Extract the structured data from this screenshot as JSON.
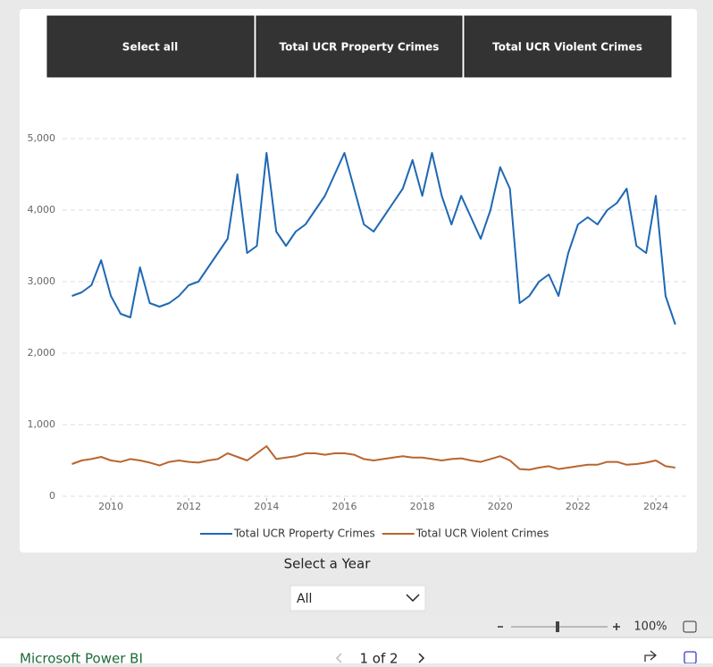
{
  "buttons": [
    "Select all",
    "Total UCR Property Crimes",
    "Total UCR Violent Crimes"
  ],
  "chart_data": {
    "type": "line",
    "x": [
      2009,
      2009.25,
      2009.5,
      2009.75,
      2010,
      2010.25,
      2010.5,
      2010.75,
      2011,
      2011.25,
      2011.5,
      2011.75,
      2012,
      2012.25,
      2012.5,
      2012.75,
      2013,
      2013.25,
      2013.5,
      2013.75,
      2014,
      2014.25,
      2014.5,
      2014.75,
      2015,
      2015.25,
      2015.5,
      2015.75,
      2016,
      2016.25,
      2016.5,
      2016.75,
      2017,
      2017.25,
      2017.5,
      2017.75,
      2018,
      2018.25,
      2018.5,
      2018.75,
      2019,
      2019.25,
      2019.5,
      2019.75,
      2020,
      2020.25,
      2020.5,
      2020.75,
      2021,
      2021.25,
      2021.5,
      2021.75,
      2022,
      2022.25,
      2022.5,
      2022.75,
      2023,
      2023.25,
      2023.5,
      2023.75,
      2024,
      2024.25,
      2024.5
    ],
    "series": [
      {
        "name": "Total UCR Property Crimes",
        "color": "#1f68b4",
        "values": [
          2800,
          2850,
          2950,
          3300,
          2800,
          2550,
          2500,
          3200,
          2700,
          2650,
          2700,
          2800,
          2950,
          3000,
          3200,
          3400,
          3600,
          4500,
          3400,
          3500,
          4800,
          3700,
          3500,
          3700,
          3800,
          4000,
          4200,
          4500,
          4800,
          4300,
          3800,
          3700,
          3900,
          4100,
          4300,
          4700,
          4200,
          4800,
          4200,
          3800,
          4200,
          3900,
          3600,
          4000,
          4600,
          4300,
          2700,
          2800,
          3000,
          3100,
          2800,
          3400,
          3800,
          3900,
          3800,
          4000,
          4100,
          4300,
          3500,
          3400,
          4200,
          2800,
          2400
        ]
      },
      {
        "name": "Total UCR Violent Crimes",
        "color": "#b9652f",
        "values": [
          450,
          500,
          520,
          550,
          500,
          480,
          520,
          500,
          470,
          430,
          480,
          500,
          480,
          470,
          500,
          520,
          600,
          550,
          500,
          600,
          700,
          520,
          540,
          560,
          600,
          600,
          580,
          600,
          600,
          580,
          520,
          500,
          520,
          540,
          560,
          540,
          540,
          520,
          500,
          520,
          530,
          500,
          480,
          520,
          560,
          500,
          380,
          370,
          400,
          420,
          380,
          400,
          420,
          440,
          440,
          480,
          480,
          440,
          450,
          470,
          500,
          420,
          400
        ]
      }
    ],
    "xlim": [
      2009,
      2024.8
    ],
    "xticks": [
      2010,
      2012,
      2014,
      2016,
      2018,
      2020,
      2022,
      2024
    ],
    "ylim": [
      0,
      5700
    ],
    "yticks": [
      0,
      {
        "value": 1000,
        "label": "1,000"
      },
      {
        "value": 2000,
        "label": "2,000"
      },
      {
        "value": 3000,
        "label": "3,000"
      },
      {
        "value": 4000,
        "label": "4,000"
      },
      {
        "value": 5000,
        "label": "5,000"
      }
    ],
    "grid": true,
    "legend": "bottom"
  },
  "slicer": {
    "label": "Select a Year",
    "selected": "All"
  },
  "zoom": "100%",
  "footer": {
    "brand": "Microsoft Power BI",
    "page": "1 of 2"
  }
}
